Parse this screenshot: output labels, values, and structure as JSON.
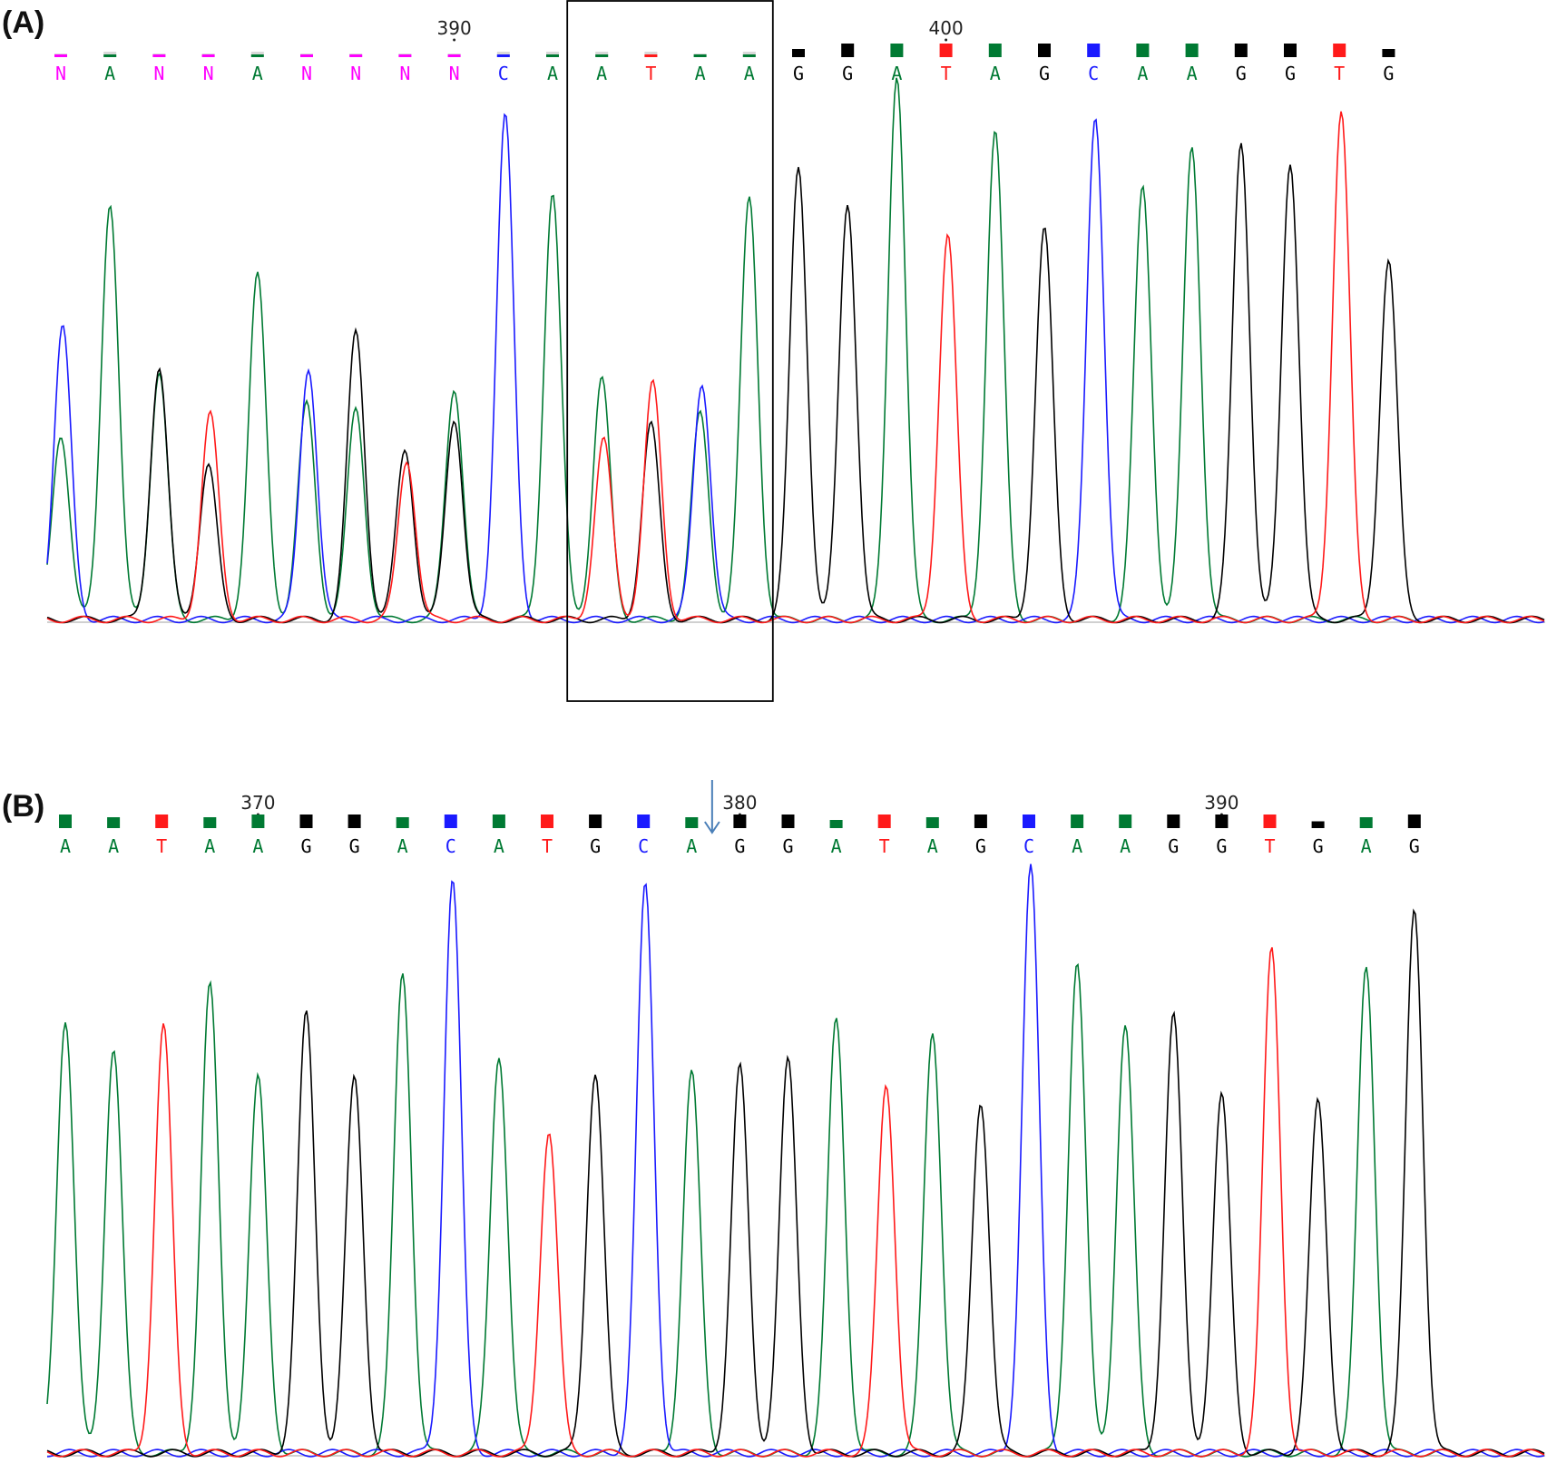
{
  "colors": {
    "A": "#007a33",
    "C": "#1a1aff",
    "G": "#000000",
    "T": "#ff1a1a",
    "N": "#ff00ff",
    "low": "#d9d9d9",
    "box": "#000000",
    "arrow": "#4a7fb8"
  },
  "panels": [
    {
      "id": "A",
      "label": "(A)",
      "bases": [
        "N",
        "A",
        "N",
        "N",
        "A",
        "N",
        "N",
        "N",
        "N",
        "C",
        "A",
        "A",
        "T",
        "A",
        "A",
        "G",
        "G",
        "A",
        "T",
        "A",
        "G",
        "C",
        "A",
        "A",
        "G",
        "G",
        "T",
        "G"
      ],
      "quality": [
        0.2,
        0.4,
        0.2,
        0.2,
        0.4,
        0.2,
        0.2,
        0.2,
        0.2,
        0.4,
        0.4,
        0.4,
        0.4,
        0.2,
        0.4,
        0.6,
        1,
        1,
        1,
        1,
        1,
        1,
        1,
        1,
        1,
        1,
        1,
        0.6
      ],
      "position_labels": [
        {
          "text": "390",
          "base_index": 8
        },
        {
          "text": "400",
          "base_index": 18
        }
      ],
      "highlight": {
        "from_base": 11,
        "to_base": 14
      },
      "peaks": [
        {
          "base": "C",
          "base_index": 0,
          "h": 0.57
        },
        {
          "base": "A",
          "base_index": 0,
          "h": 0.36
        },
        {
          "base": "A",
          "base_index": 1,
          "h": 0.81
        },
        {
          "base": "G",
          "base_index": 2,
          "h": 0.49
        },
        {
          "base": "A",
          "base_index": 2,
          "h": 0.48
        },
        {
          "base": "T",
          "base_index": 3,
          "h": 0.4
        },
        {
          "base": "G",
          "base_index": 3,
          "h": 0.3
        },
        {
          "base": "A",
          "base_index": 4,
          "h": 0.67
        },
        {
          "base": "C",
          "base_index": 5,
          "h": 0.49
        },
        {
          "base": "A",
          "base_index": 5,
          "h": 0.42
        },
        {
          "base": "G",
          "base_index": 6,
          "h": 0.56
        },
        {
          "base": "A",
          "base_index": 6,
          "h": 0.41
        },
        {
          "base": "G",
          "base_index": 7,
          "h": 0.33
        },
        {
          "base": "T",
          "base_index": 7,
          "h": 0.31
        },
        {
          "base": "A",
          "base_index": 8,
          "h": 0.45
        },
        {
          "base": "G",
          "base_index": 8,
          "h": 0.39
        },
        {
          "base": "C",
          "base_index": 9,
          "h": 0.98
        },
        {
          "base": "A",
          "base_index": 10,
          "h": 0.83
        },
        {
          "base": "A",
          "base_index": 11,
          "h": 0.47
        },
        {
          "base": "T",
          "base_index": 11,
          "h": 0.35
        },
        {
          "base": "T",
          "base_index": 12,
          "h": 0.46
        },
        {
          "base": "G",
          "base_index": 12,
          "h": 0.38
        },
        {
          "base": "C",
          "base_index": 13,
          "h": 0.46
        },
        {
          "base": "A",
          "base_index": 13,
          "h": 0.4
        },
        {
          "base": "A",
          "base_index": 14,
          "h": 0.82
        },
        {
          "base": "G",
          "base_index": 15,
          "h": 0.88
        },
        {
          "base": "G",
          "base_index": 16,
          "h": 0.81
        },
        {
          "base": "A",
          "base_index": 17,
          "h": 1.06
        },
        {
          "base": "T",
          "base_index": 18,
          "h": 0.75
        },
        {
          "base": "A",
          "base_index": 19,
          "h": 0.95
        },
        {
          "base": "G",
          "base_index": 20,
          "h": 0.76
        },
        {
          "base": "C",
          "base_index": 21,
          "h": 0.98
        },
        {
          "base": "A",
          "base_index": 22,
          "h": 0.84
        },
        {
          "base": "A",
          "base_index": 23,
          "h": 0.92
        },
        {
          "base": "G",
          "base_index": 24,
          "h": 0.93
        },
        {
          "base": "G",
          "base_index": 25,
          "h": 0.89
        },
        {
          "base": "T",
          "base_index": 26,
          "h": 0.99
        },
        {
          "base": "G",
          "base_index": 27,
          "h": 0.7
        }
      ]
    },
    {
      "id": "B",
      "label": "(B)",
      "bases": [
        "A",
        "A",
        "T",
        "A",
        "A",
        "G",
        "G",
        "A",
        "C",
        "A",
        "T",
        "G",
        "C",
        "A",
        "G",
        "G",
        "A",
        "T",
        "A",
        "G",
        "C",
        "A",
        "A",
        "G",
        "G",
        "T",
        "G",
        "A",
        "G"
      ],
      "quality": [
        1,
        0.8,
        1,
        0.8,
        1,
        1,
        1,
        0.8,
        1,
        1,
        1,
        1,
        1,
        0.8,
        1,
        1,
        0.6,
        1,
        0.8,
        1,
        1,
        1,
        1,
        1,
        1,
        1,
        0.5,
        0.8,
        1
      ],
      "position_labels": [
        {
          "text": "370",
          "base_index": 4
        },
        {
          "text": "380",
          "base_index": 14
        },
        {
          "text": "390",
          "base_index": 24
        }
      ],
      "arrow_base_index": 13.5,
      "peaks": [
        {
          "base": "A",
          "base_index": 0,
          "h": 0.74
        },
        {
          "base": "A",
          "base_index": 1,
          "h": 0.69
        },
        {
          "base": "T",
          "base_index": 2,
          "h": 0.73
        },
        {
          "base": "A",
          "base_index": 3,
          "h": 0.8
        },
        {
          "base": "A",
          "base_index": 4,
          "h": 0.64
        },
        {
          "base": "G",
          "base_index": 5,
          "h": 0.75
        },
        {
          "base": "G",
          "base_index": 6,
          "h": 0.64
        },
        {
          "base": "A",
          "base_index": 7,
          "h": 0.82
        },
        {
          "base": "C",
          "base_index": 8,
          "h": 0.98
        },
        {
          "base": "A",
          "base_index": 9,
          "h": 0.68
        },
        {
          "base": "T",
          "base_index": 10,
          "h": 0.55
        },
        {
          "base": "G",
          "base_index": 11,
          "h": 0.65
        },
        {
          "base": "C",
          "base_index": 12,
          "h": 0.97
        },
        {
          "base": "A",
          "base_index": 13,
          "h": 0.65
        },
        {
          "base": "G",
          "base_index": 14,
          "h": 0.66
        },
        {
          "base": "G",
          "base_index": 15,
          "h": 0.67
        },
        {
          "base": "A",
          "base_index": 16,
          "h": 0.74
        },
        {
          "base": "T",
          "base_index": 17,
          "h": 0.63
        },
        {
          "base": "A",
          "base_index": 18,
          "h": 0.72
        },
        {
          "base": "G",
          "base_index": 19,
          "h": 0.6
        },
        {
          "base": "C",
          "base_index": 20,
          "h": 1.0
        },
        {
          "base": "A",
          "base_index": 21,
          "h": 0.84
        },
        {
          "base": "A",
          "base_index": 22,
          "h": 0.73
        },
        {
          "base": "G",
          "base_index": 23,
          "h": 0.75
        },
        {
          "base": "G",
          "base_index": 24,
          "h": 0.61
        },
        {
          "base": "T",
          "base_index": 25,
          "h": 0.86
        },
        {
          "base": "G",
          "base_index": 26,
          "h": 0.6
        },
        {
          "base": "A",
          "base_index": 27,
          "h": 0.83
        },
        {
          "base": "G",
          "base_index": 28,
          "h": 0.93
        }
      ]
    }
  ]
}
